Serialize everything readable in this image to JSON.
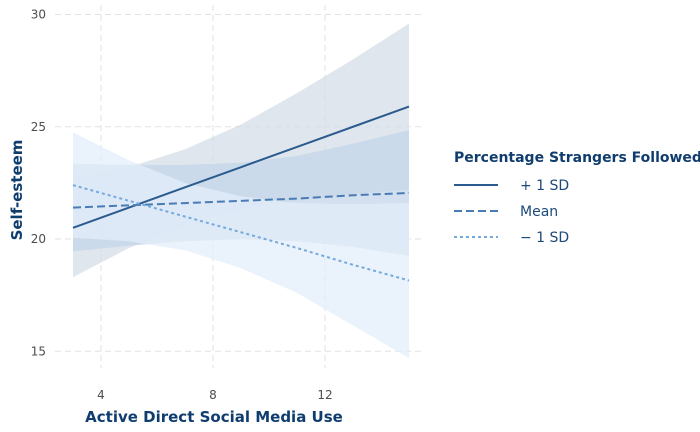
{
  "chart_data": {
    "type": "line",
    "title": "",
    "xlabel": "Active Direct Social Media Use",
    "ylabel": "Self-esteem",
    "xlim": [
      3,
      15
    ],
    "ylim": [
      14.3,
      30.4
    ],
    "xticks": [
      4,
      8,
      12
    ],
    "yticks": [
      15,
      20,
      25,
      30
    ],
    "xtick_labels": [
      "4",
      "8",
      "12"
    ],
    "ytick_labels": [
      "15",
      "20",
      "25",
      "30"
    ],
    "grid": true,
    "legend": {
      "title": "Percentage Strangers Followed",
      "placement": "right"
    },
    "x": [
      3,
      5,
      7,
      9,
      11,
      13,
      15
    ],
    "series": [
      {
        "name": "+ 1 SD",
        "line": "solid",
        "color": "#2b5b8e",
        "band_color": "#d5dde7",
        "values": [
          20.5,
          21.4,
          22.3,
          23.2,
          24.1,
          25.0,
          25.9
        ],
        "lower": [
          18.3,
          19.6,
          20.6,
          21.3,
          21.7,
          22.0,
          22.2
        ],
        "upper": [
          22.7,
          23.2,
          24.0,
          25.1,
          26.5,
          28.0,
          29.6
        ]
      },
      {
        "name": "Mean",
        "line": "dashed",
        "color": "#4a7cb4",
        "band_color": "#c4d6ea",
        "values": [
          21.4,
          21.5,
          21.6,
          21.7,
          21.8,
          21.95,
          22.05
        ],
        "lower": [
          19.45,
          19.7,
          19.9,
          20.0,
          19.9,
          19.65,
          19.25
        ],
        "upper": [
          23.35,
          23.3,
          23.3,
          23.4,
          23.7,
          24.25,
          24.85
        ]
      },
      {
        "name": "− 1 SD",
        "line": "dotted",
        "color": "#74a9de",
        "band_color": "#e3eef9",
        "values": [
          22.4,
          21.7,
          21.0,
          20.3,
          19.6,
          18.85,
          18.15
        ],
        "lower": [
          20.05,
          19.9,
          19.5,
          18.7,
          17.6,
          16.15,
          14.7
        ],
        "upper": [
          24.75,
          23.5,
          22.5,
          21.9,
          21.6,
          21.55,
          21.6
        ]
      }
    ]
  }
}
